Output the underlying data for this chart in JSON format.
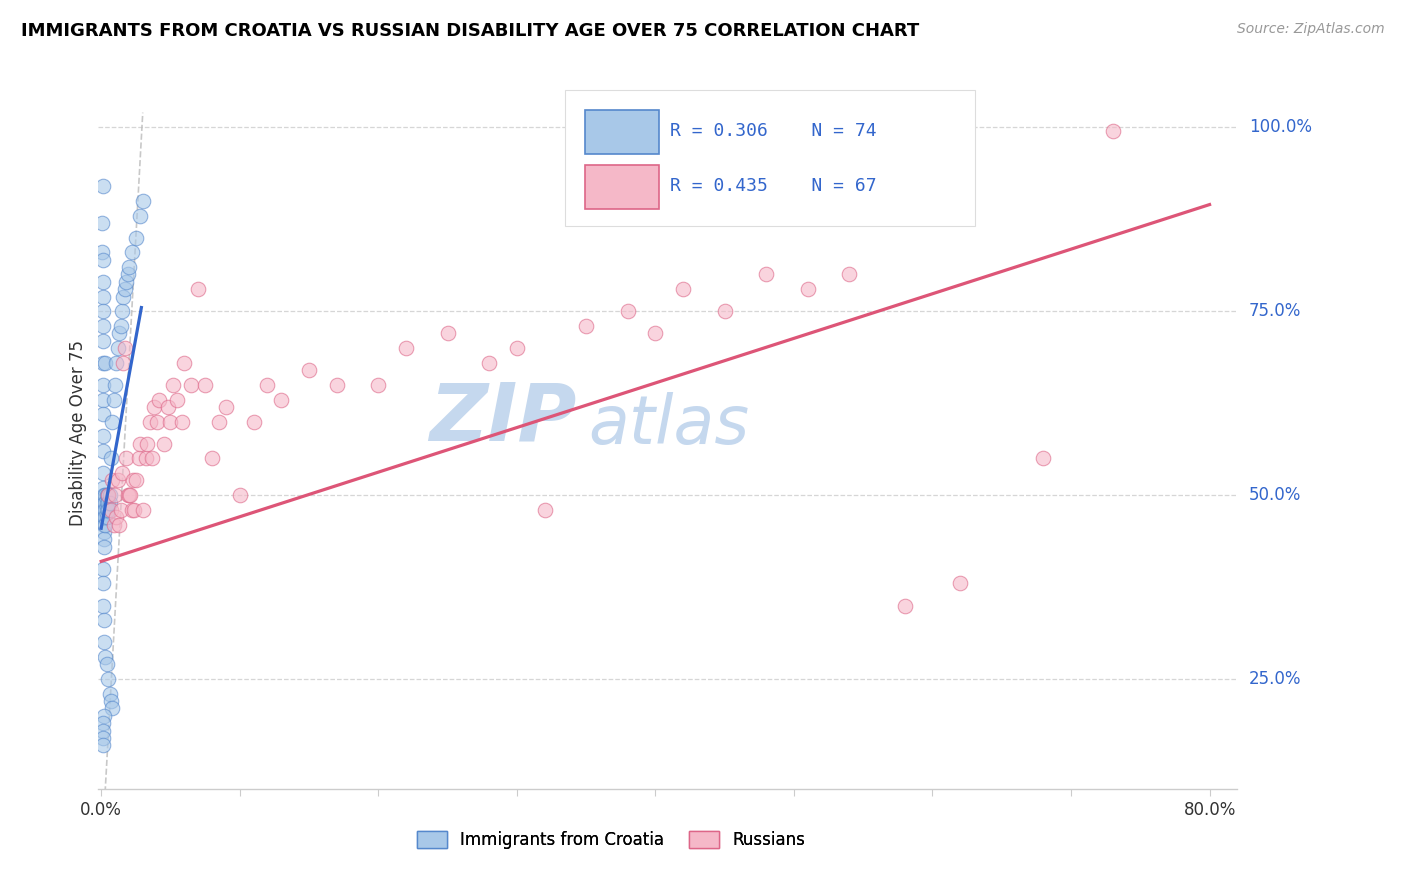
{
  "title": "IMMIGRANTS FROM CROATIA VS RUSSIAN DISABILITY AGE OVER 75 CORRELATION CHART",
  "source": "Source: ZipAtlas.com",
  "ylabel": "Disability Age Over 75",
  "x_label_croatia": "Immigrants from Croatia",
  "x_label_russians": "Russians",
  "legend_r1": "R = 0.306",
  "legend_n1": "N = 74",
  "legend_r2": "R = 0.435",
  "legend_n2": "N = 67",
  "color_croatia_fill": "#a8c8e8",
  "color_croatia_edge": "#5588cc",
  "color_russians_fill": "#f5b8c8",
  "color_russians_edge": "#dd6688",
  "color_trendline_croatia": "#3366cc",
  "color_trendline_russians": "#dd5577",
  "color_refline": "#bbbbbb",
  "color_grid": "#cccccc",
  "color_right_labels": "#3366cc",
  "watermark_zip_color": "#c5d8ee",
  "watermark_atlas_color": "#c5d8ee",
  "ytick_values": [
    0.25,
    0.5,
    0.75,
    1.0
  ],
  "ytick_labels": [
    "25.0%",
    "50.0%",
    "75.0%",
    "100.0%"
  ],
  "xlim": [
    -0.002,
    0.82
  ],
  "ylim": [
    0.1,
    1.07
  ],
  "croatia_x": [
    0.0005,
    0.0005,
    0.001,
    0.001,
    0.001,
    0.001,
    0.001,
    0.001,
    0.001,
    0.001,
    0.001,
    0.001,
    0.001,
    0.001,
    0.001,
    0.001,
    0.002,
    0.002,
    0.002,
    0.002,
    0.002,
    0.002,
    0.002,
    0.002,
    0.003,
    0.003,
    0.003,
    0.003,
    0.003,
    0.003,
    0.004,
    0.004,
    0.004,
    0.004,
    0.005,
    0.005,
    0.005,
    0.006,
    0.006,
    0.007,
    0.008,
    0.009,
    0.01,
    0.011,
    0.012,
    0.013,
    0.014,
    0.015,
    0.016,
    0.017,
    0.018,
    0.019,
    0.02,
    0.022,
    0.025,
    0.028,
    0.03,
    0.001,
    0.001,
    0.001,
    0.002,
    0.002,
    0.003,
    0.004,
    0.005,
    0.006,
    0.007,
    0.008,
    0.001,
    0.002,
    0.001,
    0.001,
    0.001,
    0.001
  ],
  "croatia_y": [
    0.87,
    0.83,
    0.82,
    0.79,
    0.77,
    0.75,
    0.73,
    0.71,
    0.68,
    0.65,
    0.63,
    0.61,
    0.58,
    0.56,
    0.53,
    0.51,
    0.5,
    0.49,
    0.48,
    0.47,
    0.46,
    0.45,
    0.44,
    0.43,
    0.5,
    0.49,
    0.48,
    0.47,
    0.46,
    0.68,
    0.5,
    0.49,
    0.48,
    0.47,
    0.5,
    0.49,
    0.48,
    0.5,
    0.49,
    0.55,
    0.6,
    0.63,
    0.65,
    0.68,
    0.7,
    0.72,
    0.73,
    0.75,
    0.77,
    0.78,
    0.79,
    0.8,
    0.81,
    0.83,
    0.85,
    0.88,
    0.9,
    0.4,
    0.38,
    0.35,
    0.33,
    0.3,
    0.28,
    0.27,
    0.25,
    0.23,
    0.22,
    0.21,
    0.92,
    0.2,
    0.19,
    0.18,
    0.17,
    0.16
  ],
  "russians_x": [
    0.005,
    0.007,
    0.008,
    0.009,
    0.01,
    0.011,
    0.012,
    0.013,
    0.014,
    0.015,
    0.016,
    0.017,
    0.018,
    0.019,
    0.02,
    0.021,
    0.022,
    0.023,
    0.024,
    0.025,
    0.027,
    0.028,
    0.03,
    0.032,
    0.033,
    0.035,
    0.037,
    0.038,
    0.04,
    0.042,
    0.045,
    0.048,
    0.05,
    0.052,
    0.055,
    0.058,
    0.06,
    0.065,
    0.07,
    0.075,
    0.08,
    0.085,
    0.09,
    0.1,
    0.11,
    0.12,
    0.13,
    0.15,
    0.17,
    0.2,
    0.22,
    0.25,
    0.28,
    0.3,
    0.32,
    0.35,
    0.38,
    0.4,
    0.42,
    0.45,
    0.48,
    0.51,
    0.54,
    0.58,
    0.62,
    0.68,
    0.73
  ],
  "russians_y": [
    0.5,
    0.48,
    0.52,
    0.46,
    0.5,
    0.47,
    0.52,
    0.46,
    0.48,
    0.53,
    0.68,
    0.7,
    0.55,
    0.5,
    0.5,
    0.5,
    0.48,
    0.52,
    0.48,
    0.52,
    0.55,
    0.57,
    0.48,
    0.55,
    0.57,
    0.6,
    0.55,
    0.62,
    0.6,
    0.63,
    0.57,
    0.62,
    0.6,
    0.65,
    0.63,
    0.6,
    0.68,
    0.65,
    0.78,
    0.65,
    0.55,
    0.6,
    0.62,
    0.5,
    0.6,
    0.65,
    0.63,
    0.67,
    0.65,
    0.65,
    0.7,
    0.72,
    0.68,
    0.7,
    0.48,
    0.73,
    0.75,
    0.72,
    0.78,
    0.75,
    0.8,
    0.78,
    0.8,
    0.35,
    0.38,
    0.55,
    0.995
  ],
  "croatia_trend_x": [
    0.0,
    0.029
  ],
  "croatia_trend_y": [
    0.455,
    0.755
  ],
  "russians_trend_x": [
    0.0,
    0.8
  ],
  "russians_trend_y": [
    0.41,
    0.895
  ],
  "refline_x": [
    0.0,
    0.03
  ],
  "refline_y": [
    0.0,
    1.02
  ]
}
